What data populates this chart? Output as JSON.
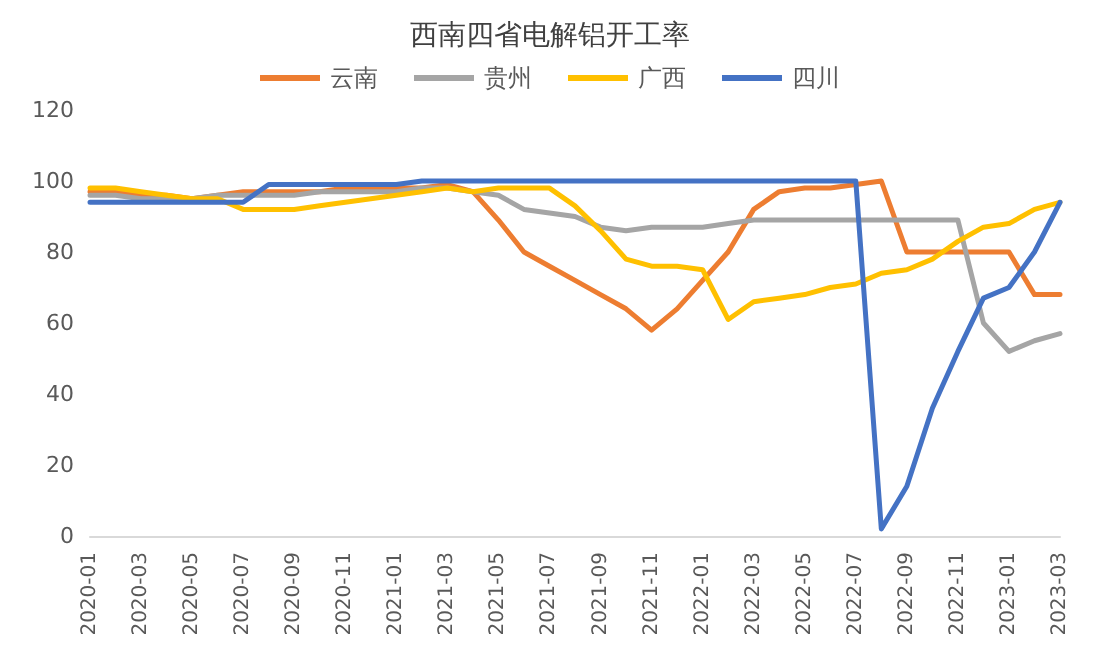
{
  "chart_data": {
    "type": "line",
    "title": "西南四省电解铝开工率",
    "categories": [
      "2020-01",
      null,
      "2020-03",
      null,
      "2020-05",
      null,
      "2020-07",
      null,
      "2020-09",
      null,
      "2020-11",
      null,
      "2021-01",
      null,
      "2021-03",
      null,
      "2021-05",
      null,
      "2021-07",
      null,
      "2021-09",
      null,
      "2021-11",
      null,
      "2022-01",
      null,
      "2022-03",
      null,
      "2022-05",
      null,
      "2022-07",
      null,
      "2022-09",
      null,
      "2022-11",
      null,
      "2023-01",
      null,
      "2023-03"
    ],
    "series": [
      {
        "name": "云南",
        "color": "#ed7d31",
        "values": [
          97,
          97,
          96,
          96,
          95,
          96,
          97,
          97,
          97,
          97,
          98,
          98,
          98,
          98,
          99,
          97,
          89,
          80,
          76,
          72,
          68,
          64,
          58,
          64,
          72,
          80,
          92,
          97,
          98,
          98,
          99,
          100,
          80,
          80,
          80,
          80,
          80,
          68,
          68
        ]
      },
      {
        "name": "贵州",
        "color": "#a5a5a5",
        "values": [
          96,
          96,
          95,
          95,
          95,
          96,
          96,
          96,
          96,
          97,
          97,
          97,
          97,
          98,
          98,
          97,
          96,
          92,
          91,
          90,
          87,
          86,
          87,
          87,
          87,
          88,
          89,
          89,
          89,
          89,
          89,
          89,
          89,
          89,
          89,
          60,
          52,
          55,
          57
        ]
      },
      {
        "name": "广西",
        "color": "#ffc000",
        "values": [
          98,
          98,
          97,
          96,
          95,
          95,
          92,
          92,
          92,
          93,
          94,
          95,
          96,
          97,
          98,
          97,
          98,
          98,
          98,
          93,
          86,
          78,
          76,
          76,
          75,
          61,
          66,
          67,
          68,
          70,
          71,
          74,
          75,
          78,
          83,
          87,
          88,
          92,
          94
        ]
      },
      {
        "name": "四川",
        "color": "#4472c4",
        "values": [
          94,
          94,
          94,
          94,
          94,
          94,
          94,
          99,
          99,
          99,
          99,
          99,
          99,
          100,
          100,
          100,
          100,
          100,
          100,
          100,
          100,
          100,
          100,
          100,
          100,
          100,
          100,
          100,
          100,
          100,
          100,
          2,
          14,
          36,
          52,
          67,
          70,
          80,
          94
        ]
      }
    ],
    "ylim": [
      0,
      120
    ],
    "yticks": [
      0,
      20,
      40,
      60,
      80,
      100,
      120
    ],
    "legend": "top",
    "line_style": "solid",
    "marker": "none"
  }
}
